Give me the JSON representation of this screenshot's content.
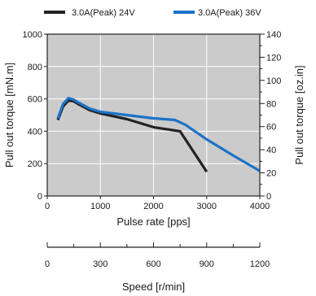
{
  "chart_data": {
    "type": "line",
    "title": "",
    "xlabel": "Pulse rate [pps]",
    "ylabel": "Pull out torque [mN.m]",
    "y2label": "Pull out torque [oz.in]",
    "x2label": "Speed [r/min]",
    "xlim": [
      0,
      4000
    ],
    "ylim": [
      0,
      1000
    ],
    "y2lim": [
      0,
      140
    ],
    "x2lim": [
      0,
      1200
    ],
    "xticks": [
      0,
      1000,
      2000,
      3000,
      4000
    ],
    "yticks": [
      0,
      200,
      400,
      600,
      800,
      1000
    ],
    "y2ticks": [
      0,
      20,
      40,
      60,
      80,
      100,
      120,
      140
    ],
    "x2ticks": [
      0,
      300,
      600,
      900,
      1200
    ],
    "grid": true,
    "legend_position": "top",
    "series": [
      {
        "name": "3.0A(Peak) 24V",
        "color": "#222222",
        "x": [
          200,
          300,
          400,
          500,
          600,
          800,
          1000,
          1500,
          2000,
          2500,
          3000
        ],
        "y": [
          470,
          555,
          590,
          585,
          565,
          530,
          510,
          475,
          425,
          400,
          150
        ]
      },
      {
        "name": "3.0A(Peak) 36V",
        "color": "#1e73c8",
        "x": [
          200,
          300,
          400,
          500,
          600,
          800,
          1000,
          1500,
          2000,
          2400,
          2600,
          3000,
          3500,
          4000
        ],
        "y": [
          480,
          570,
          605,
          595,
          575,
          540,
          520,
          500,
          480,
          470,
          440,
          350,
          250,
          155
        ]
      }
    ]
  }
}
